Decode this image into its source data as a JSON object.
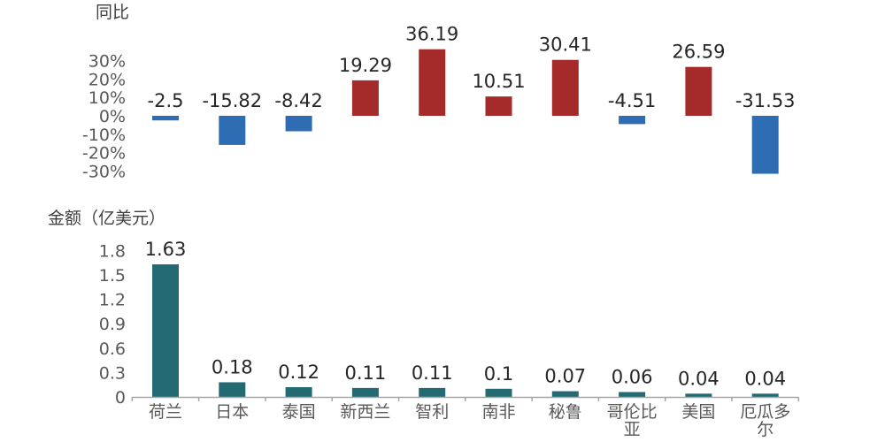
{
  "chart_data": [
    {
      "type": "bar",
      "title": "同比",
      "categories": [
        "荷兰",
        "日本",
        "泰国",
        "新西兰",
        "智利",
        "南非",
        "秘鲁",
        "哥伦比亚",
        "美国",
        "厄瓜多尔"
      ],
      "values": [
        -2.5,
        -15.82,
        -8.42,
        19.29,
        36.19,
        10.51,
        30.41,
        -4.51,
        26.59,
        -31.53
      ],
      "value_labels": [
        "-2.5",
        "-15.82",
        "-8.42",
        "19.29",
        "36.19",
        "10.51",
        "30.41",
        "-4.51",
        "26.59",
        "-31.53"
      ],
      "yticks": [
        "30%",
        "20%",
        "10%",
        "0%",
        "-10%",
        "-20%",
        "-30%"
      ],
      "ylim": [
        -30,
        30
      ],
      "colors": {
        "positive": "#A52A2A",
        "negative": "#2E6DB4"
      },
      "grid": false
    },
    {
      "type": "bar",
      "title": "金额（亿美元）",
      "categories": [
        "荷兰",
        "日本",
        "泰国",
        "新西兰",
        "智利",
        "南非",
        "秘鲁",
        "哥伦比亚",
        "美国",
        "厄瓜多尔"
      ],
      "category_labels": [
        [
          "荷兰"
        ],
        [
          "日本"
        ],
        [
          "泰国"
        ],
        [
          "新西兰"
        ],
        [
          "智利"
        ],
        [
          "南非"
        ],
        [
          "秘鲁"
        ],
        [
          "哥伦比",
          "亚"
        ],
        [
          "美国"
        ],
        [
          "厄瓜多",
          "尔"
        ]
      ],
      "values": [
        1.63,
        0.18,
        0.12,
        0.11,
        0.11,
        0.1,
        0.07,
        0.06,
        0.04,
        0.04
      ],
      "value_labels": [
        "1.63",
        "0.18",
        "0.12",
        "0.11",
        "0.11",
        "0.1",
        "0.07",
        "0.06",
        "0.04",
        "0.04"
      ],
      "yticks": [
        "1.8",
        "1.5",
        "1.2",
        "0.9",
        "0.6",
        "0.3",
        "0"
      ],
      "ylim": [
        0,
        1.8
      ],
      "colors": {
        "bar": "#246A73",
        "axis": "#A6A6A6"
      },
      "grid": false
    }
  ]
}
